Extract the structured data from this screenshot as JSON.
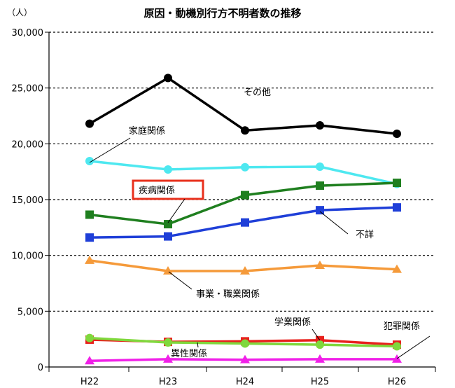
{
  "chart_data": {
    "type": "line",
    "title": "原因・動機別行方不明者数の推移",
    "unit_label": "（人）",
    "categories": [
      "H22",
      "H23",
      "H24",
      "H25",
      "H26"
    ],
    "ylim": [
      0,
      30000
    ],
    "yticks": [
      "0",
      "5,000",
      "10,000",
      "15,000",
      "20,000",
      "25,000",
      "30,000"
    ],
    "grid": true,
    "series": [
      {
        "name": "その他",
        "values": [
          21800,
          25900,
          21200,
          21650,
          20900
        ],
        "color": "#000000",
        "marker": "circle"
      },
      {
        "name": "家庭関係",
        "values": [
          18450,
          17700,
          17900,
          17950,
          16400
        ],
        "color": "#4ee8f0",
        "marker": "circle"
      },
      {
        "name": "疾病関係",
        "values": [
          13650,
          12800,
          15400,
          16250,
          16500
        ],
        "color": "#1f7f1f",
        "marker": "square"
      },
      {
        "name": "不詳",
        "values": [
          11600,
          11700,
          12950,
          14050,
          14300
        ],
        "color": "#1f3fd8",
        "marker": "square"
      },
      {
        "name": "事業・職業関係",
        "values": [
          9550,
          8600,
          8600,
          9100,
          8750
        ],
        "color": "#f59a3a",
        "marker": "triangle"
      },
      {
        "name": "学業関係",
        "values": [
          2450,
          2250,
          2300,
          2400,
          2000
        ],
        "color": "#e8201c",
        "marker": "square"
      },
      {
        "name": "異性関係",
        "values": [
          2600,
          2200,
          2100,
          2000,
          1850
        ],
        "color": "#7fd83c",
        "marker": "circle"
      },
      {
        "name": "犯罪関係",
        "values": [
          550,
          700,
          650,
          700,
          700
        ],
        "color": "#f020e8",
        "marker": "triangle"
      }
    ],
    "annotations": [
      {
        "text": "その他",
        "series": 0,
        "highlighted": false
      },
      {
        "text": "家庭関係",
        "series": 1,
        "highlighted": false
      },
      {
        "text": "疾病関係",
        "series": 2,
        "highlighted": true
      },
      {
        "text": "不詳",
        "series": 3,
        "highlighted": false
      },
      {
        "text": "事業・職業関係",
        "series": 4,
        "highlighted": false
      },
      {
        "text": "学業関係",
        "series": 5,
        "highlighted": false
      },
      {
        "text": "異性関係",
        "series": 6,
        "highlighted": false
      },
      {
        "text": "犯罪関係",
        "series": 7,
        "highlighted": false
      }
    ],
    "highlight_color": "#e8301c"
  }
}
